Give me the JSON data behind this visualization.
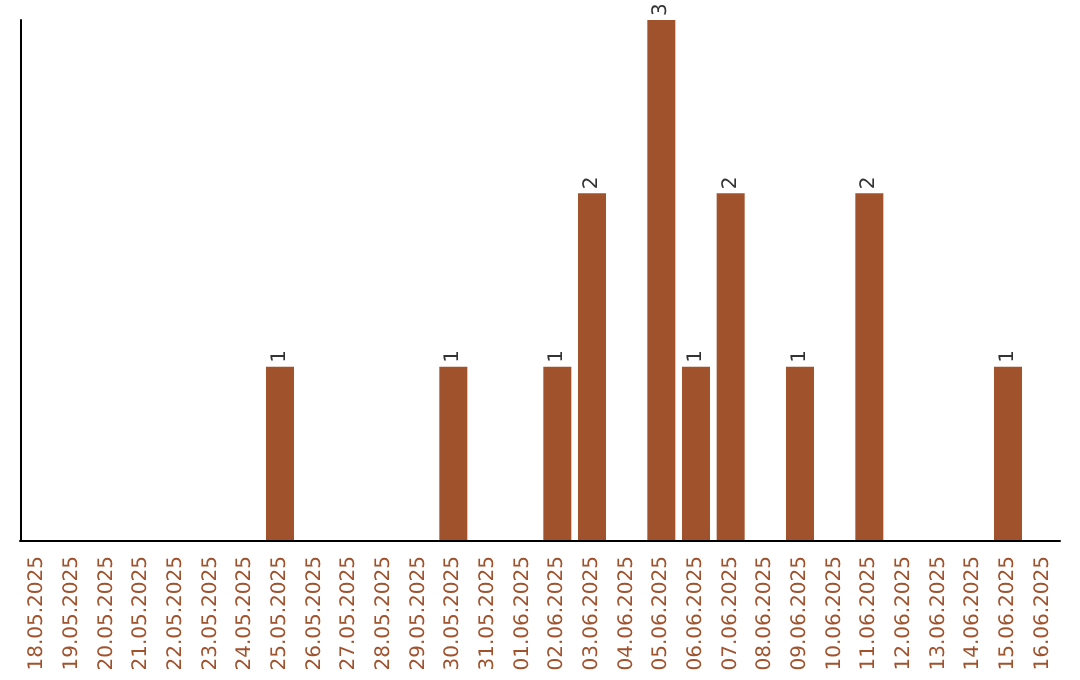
{
  "chart_data": {
    "type": "bar",
    "categories": [
      "18.05.2025",
      "19.05.2025",
      "20.05.2025",
      "21.05.2025",
      "22.05.2025",
      "23.05.2025",
      "24.05.2025",
      "25.05.2025",
      "26.05.2025",
      "27.05.2025",
      "28.05.2025",
      "29.05.2025",
      "30.05.2025",
      "31.05.2025",
      "01.06.2025",
      "02.06.2025",
      "03.06.2025",
      "04.06.2025",
      "05.06.2025",
      "06.06.2025",
      "07.06.2025",
      "08.06.2025",
      "09.06.2025",
      "10.06.2025",
      "11.06.2025",
      "12.06.2025",
      "13.06.2025",
      "14.06.2025",
      "15.06.2025",
      "16.06.2025"
    ],
    "values": [
      0,
      0,
      0,
      0,
      0,
      0,
      0,
      1,
      0,
      0,
      0,
      0,
      1,
      0,
      0,
      1,
      2,
      0,
      3,
      1,
      2,
      0,
      1,
      0,
      2,
      0,
      0,
      0,
      1,
      0
    ],
    "value_labels": [
      null,
      null,
      null,
      null,
      null,
      null,
      null,
      "1",
      null,
      null,
      null,
      null,
      "1",
      null,
      null,
      "1",
      "2",
      null,
      "3",
      "1",
      "2",
      null,
      "1",
      null,
      "2",
      null,
      null,
      null,
      "1",
      null
    ],
    "color": "#a0522d"
  }
}
